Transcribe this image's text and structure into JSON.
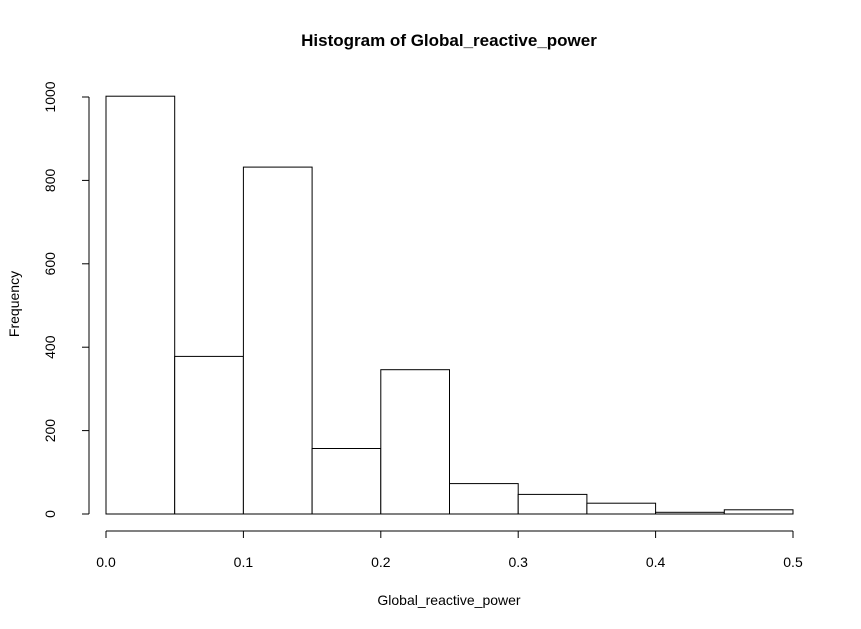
{
  "chart_data": {
    "type": "bar",
    "title": "Histogram of Global_reactive_power",
    "xlabel": "Global_reactive_power",
    "ylabel": "Frequency",
    "bins": [
      {
        "start": 0.0,
        "end": 0.05,
        "count": 1002
      },
      {
        "start": 0.05,
        "end": 0.1,
        "count": 378
      },
      {
        "start": 0.1,
        "end": 0.15,
        "count": 832
      },
      {
        "start": 0.15,
        "end": 0.2,
        "count": 157
      },
      {
        "start": 0.2,
        "end": 0.25,
        "count": 346
      },
      {
        "start": 0.25,
        "end": 0.3,
        "count": 73
      },
      {
        "start": 0.3,
        "end": 0.35,
        "count": 47
      },
      {
        "start": 0.35,
        "end": 0.4,
        "count": 26
      },
      {
        "start": 0.4,
        "end": 0.45,
        "count": 4
      },
      {
        "start": 0.45,
        "end": 0.5,
        "count": 10
      }
    ],
    "xlim": [
      0,
      0.5
    ],
    "ylim": [
      0,
      1000
    ],
    "x_ticks": [
      "0.0",
      "0.1",
      "0.2",
      "0.3",
      "0.4",
      "0.5"
    ],
    "y_ticks": [
      "0",
      "200",
      "400",
      "600",
      "800",
      "1000"
    ],
    "grid": false,
    "bar_fill": "#ffffff",
    "bar_stroke": "#000000"
  }
}
